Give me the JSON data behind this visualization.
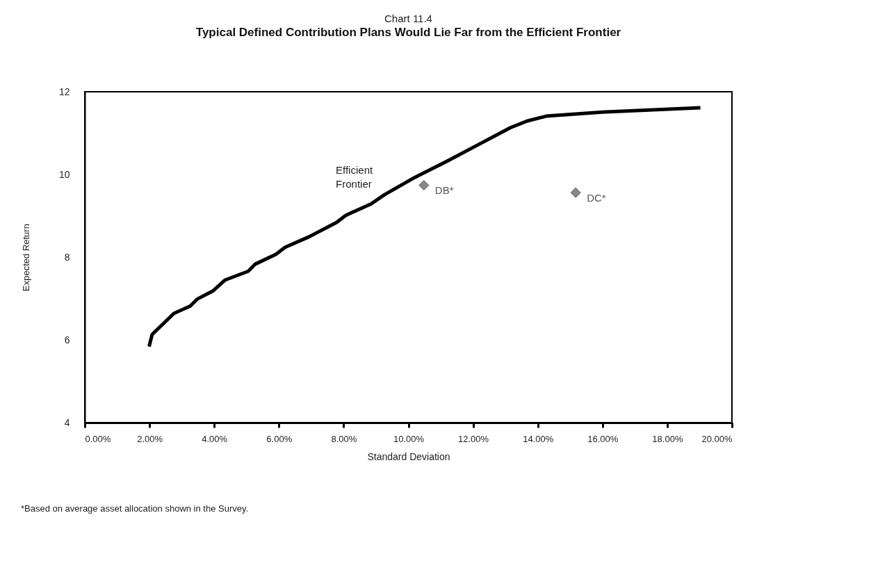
{
  "chart_data": {
    "type": "line",
    "title": "Chart 11.4",
    "subtitle": "Typical Defined Contribution Plans Would Lie Far from the Efficient Frontier",
    "xlabel": "Standard  Deviation",
    "ylabel": "Expected Return",
    "series": [
      {
        "name": "Efficient Frontier",
        "color": "#000000",
        "line_style": "solid",
        "x": [
          2.0,
          2.08,
          2.75,
          3.26,
          3.48,
          3.97,
          4.34,
          5.05,
          5.26,
          5.91,
          6.19,
          6.92,
          7.78,
          8.06,
          8.85,
          9.26,
          10.2,
          11.19,
          12.16,
          13.15,
          13.66,
          14.26,
          16.0,
          18.97
        ],
        "values": [
          5.88,
          6.13,
          6.64,
          6.82,
          6.99,
          7.19,
          7.45,
          7.66,
          7.83,
          8.07,
          8.24,
          8.49,
          8.84,
          9.01,
          9.29,
          9.51,
          9.93,
          10.32,
          10.72,
          11.13,
          11.29,
          11.41,
          11.51,
          11.61
        ]
      },
      {
        "name": "DB*",
        "type": "scatter",
        "color": "#555555",
        "marker": "diamond",
        "x": [
          10.48
        ],
        "values": [
          9.74
        ]
      },
      {
        "name": "DC*",
        "type": "scatter",
        "color": "#555555",
        "marker": "diamond",
        "x": [
          15.17
        ],
        "values": [
          9.56
        ]
      }
    ],
    "xlim": [
      0,
      20
    ],
    "ylim": [
      4,
      12
    ],
    "xticks": [
      {
        "value": 0,
        "label": "0.00%"
      },
      {
        "value": 2,
        "label": "2.00%"
      },
      {
        "value": 4,
        "label": "4.00%"
      },
      {
        "value": 6,
        "label": "6.00%"
      },
      {
        "value": 8,
        "label": "8.00%"
      },
      {
        "value": 10,
        "label": "10.00%"
      },
      {
        "value": 12,
        "label": "12.00%"
      },
      {
        "value": 14,
        "label": "14.00%"
      },
      {
        "value": 16,
        "label": "16.00%"
      },
      {
        "value": 18,
        "label": "18.00%"
      },
      {
        "value": 20,
        "label": "20.00%"
      }
    ],
    "yticks": [
      {
        "value": 4,
        "label": "4"
      },
      {
        "value": 6,
        "label": "6"
      },
      {
        "value": 8,
        "label": "8"
      },
      {
        "value": 10,
        "label": "10"
      },
      {
        "value": 12,
        "label": "12"
      }
    ],
    "grid": false,
    "annotations": [
      "*Based on average asset allocation shown in the Survey."
    ]
  }
}
